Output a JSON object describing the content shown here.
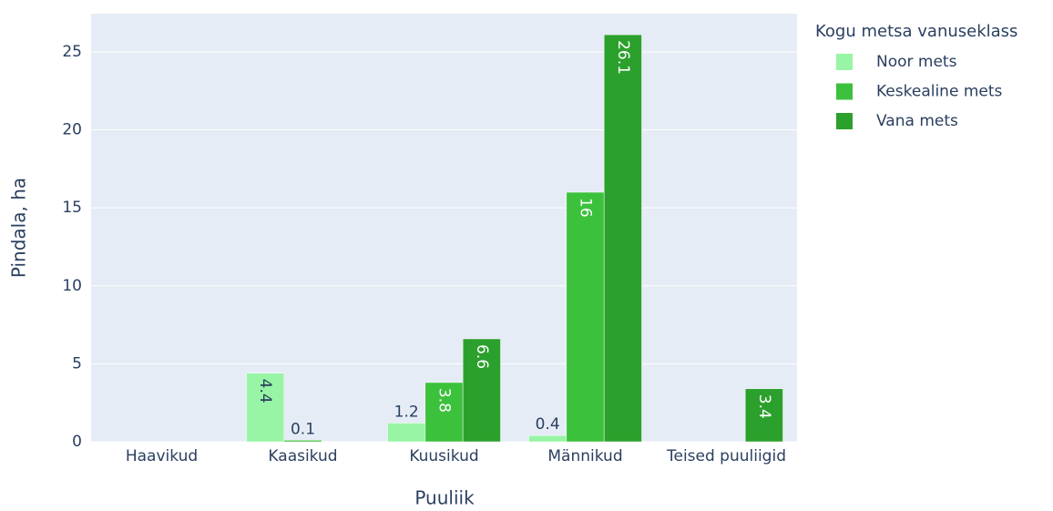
{
  "chart_data": {
    "type": "bar",
    "xlabel": "Puuliik",
    "ylabel": "Pindala, ha",
    "legend_title": "Kogu metsa vanuseklass",
    "categories": [
      "Haavikud",
      "Kaasikud",
      "Kuusikud",
      "Männikud",
      "Teised puuliigid"
    ],
    "series": [
      {
        "name": "Noor mets",
        "color": "#98f5a5",
        "values": [
          null,
          4.4,
          1.2,
          0.4,
          null
        ]
      },
      {
        "name": "Keskealine mets",
        "color": "#3cc13c",
        "values": [
          null,
          0.1,
          3.8,
          16,
          null
        ]
      },
      {
        "name": "Vana mets",
        "color": "#2ca02c",
        "values": [
          null,
          null,
          6.6,
          26.1,
          3.4
        ]
      }
    ],
    "ylim": [
      0,
      27.45
    ],
    "yticks": [
      0,
      5,
      10,
      15,
      20,
      25
    ],
    "grid": true,
    "legend": "right"
  }
}
